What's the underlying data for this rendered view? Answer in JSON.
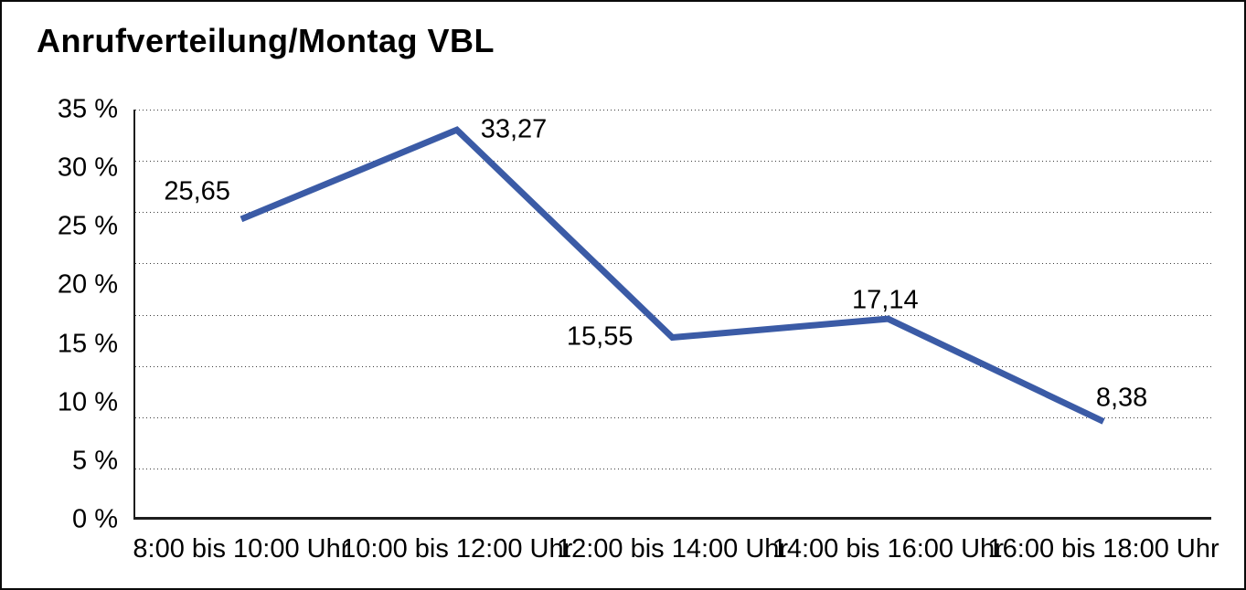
{
  "title": "Anrufverteilung/Montag VBL",
  "chart_data": {
    "type": "line",
    "title": "Anrufverteilung/Montag VBL",
    "categories": [
      "8:00 bis 10:00 Uhr",
      "10:00 bis 12:00 Uhr",
      "12:00 bis 14:00 Uhr",
      "14:00 bis 16:00 Uhr",
      "16:00 bis 18:00 Uhr"
    ],
    "values": [
      25.65,
      33.27,
      15.55,
      17.14,
      8.38
    ],
    "value_labels": [
      "25,65",
      "33,27",
      "15,55",
      "17,14",
      "8,38"
    ],
    "y_ticks": [
      35,
      30,
      25,
      20,
      15,
      10,
      5,
      0
    ],
    "y_tick_labels": [
      "35 %",
      "30 %",
      "25 %",
      "20 %",
      "15 %",
      "10 %",
      "5 %",
      "0 %"
    ],
    "ylim": [
      0,
      35
    ],
    "xlabel": "",
    "ylabel": "",
    "unit": "%",
    "legend": "none",
    "grid": "horizontal-dotted",
    "line_color": "#3B5BA6",
    "text_color": "#000000",
    "axis_color": "#1d1d1d"
  }
}
